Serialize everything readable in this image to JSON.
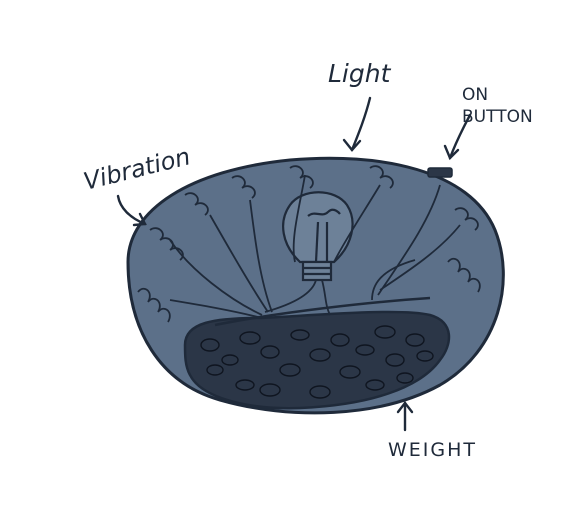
{
  "diagram": {
    "labels": {
      "light": "Light",
      "on_button_line1": "ON",
      "on_button_line2": "BUTTON",
      "vibration": "Vibration",
      "weight": "WEIGHT"
    },
    "colors": {
      "body_fill": "#5c7089",
      "ink": "#1f2a3a",
      "weight_fill": "#2b3647",
      "background": "#ffffff"
    },
    "icons": [
      "light-bulb-icon",
      "coil-spring-icon",
      "on-button-icon",
      "arrow-icon"
    ]
  }
}
